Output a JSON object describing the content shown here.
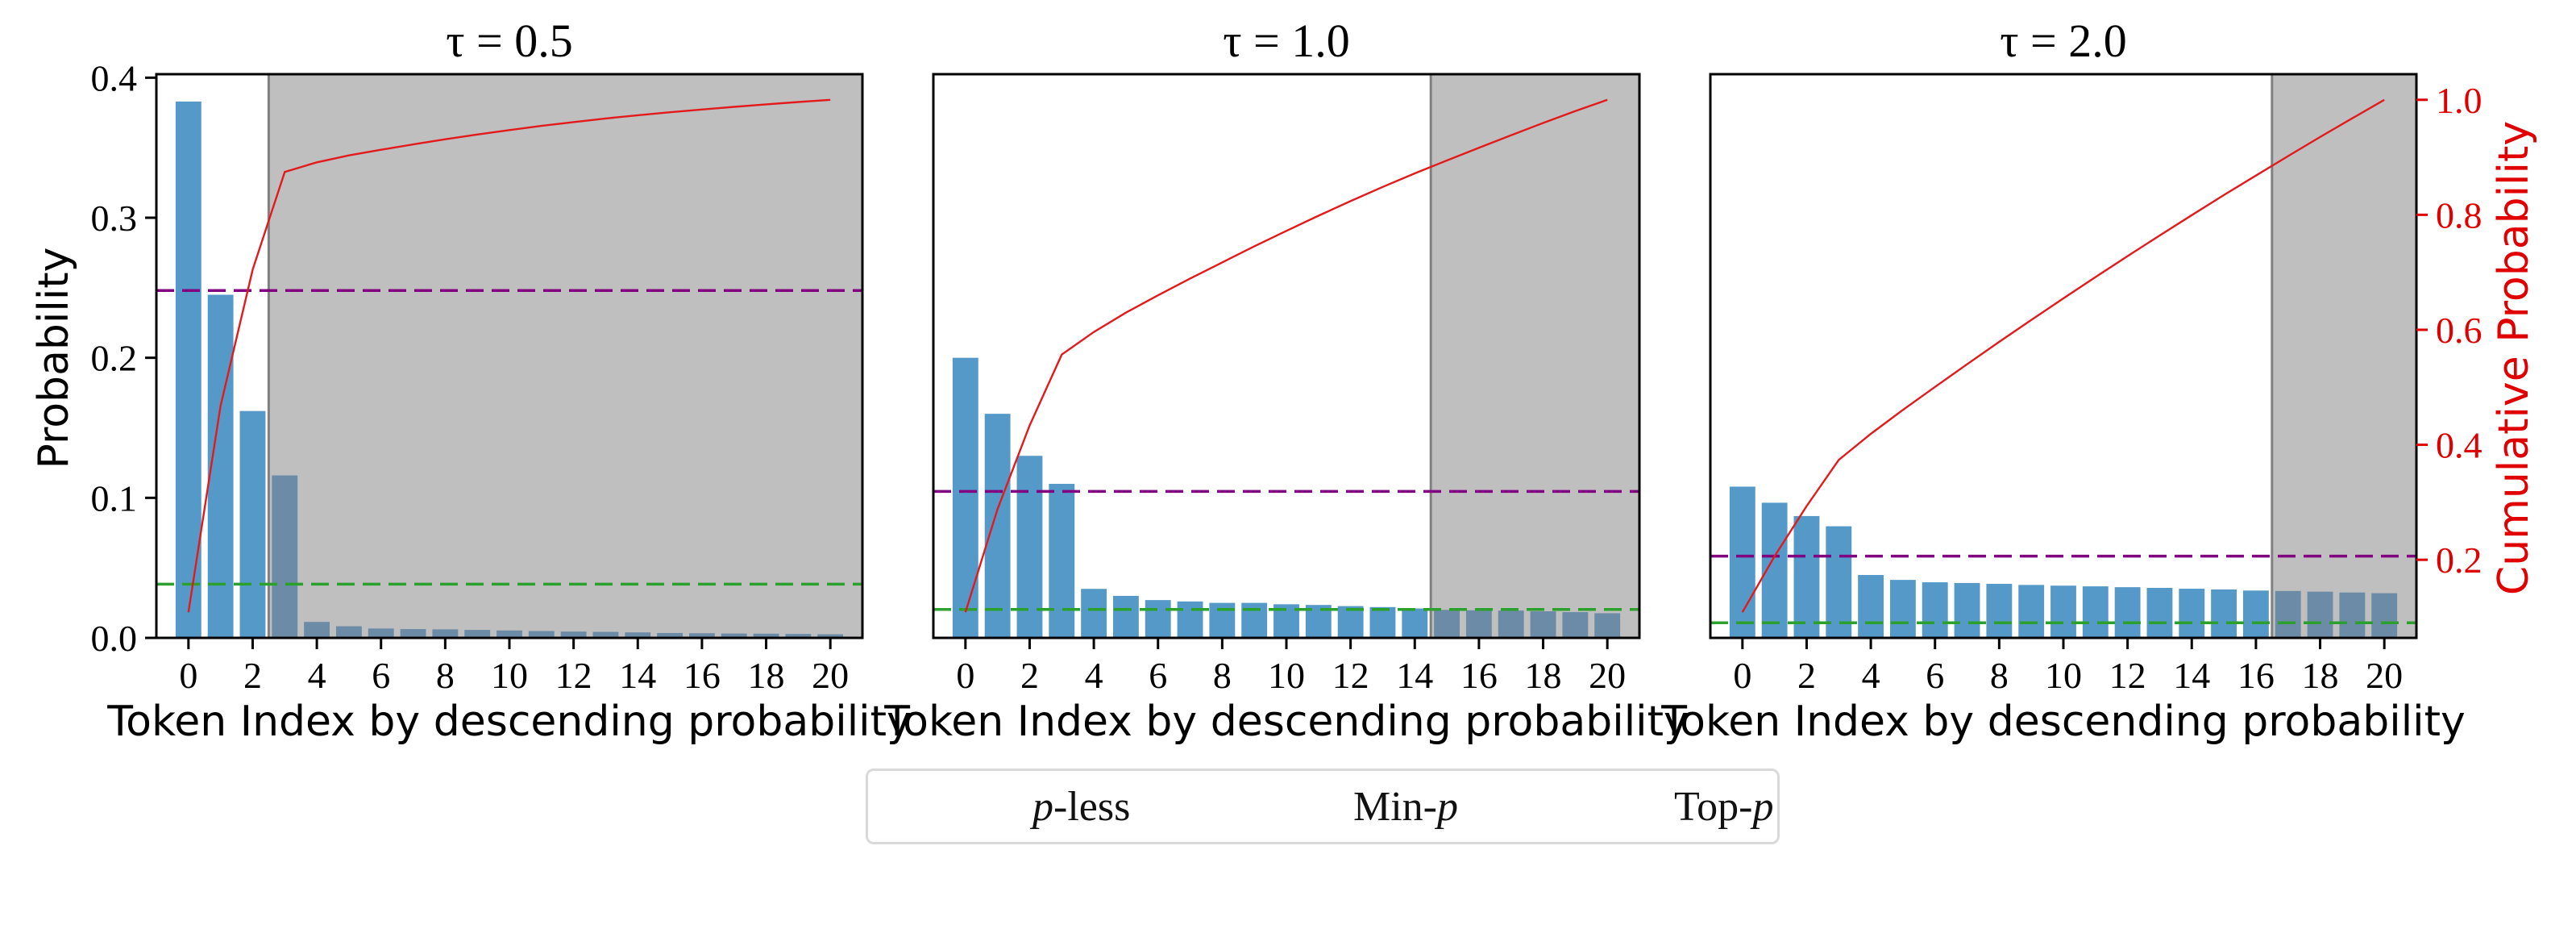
{
  "colors": {
    "bar": "#5599c8",
    "bar_shaded": "#6c8ba6",
    "shade": "#bfbfbf",
    "cumulative": "#e31a1c",
    "p_less": "#800080",
    "min_p": "#2ca02c",
    "top_p": "#808080",
    "right_axis": "#e00000"
  },
  "legend": {
    "items": [
      {
        "key": "p_less",
        "prefix_italic": "p",
        "suffix": "-less",
        "style": "dashed"
      },
      {
        "key": "min_p",
        "prefix": "Min-",
        "suffix_italic": "p",
        "style": "dashed"
      },
      {
        "key": "top_p",
        "prefix": "Top-",
        "suffix_italic": "p",
        "style": "solid"
      }
    ]
  },
  "chart_data": [
    {
      "type": "bar",
      "title": "τ = 0.5",
      "xlabel": "Token Index by descending probability",
      "ylabel": "Probability",
      "x": [
        0,
        1,
        2,
        3,
        4,
        5,
        6,
        7,
        8,
        9,
        10,
        11,
        12,
        13,
        14,
        15,
        16,
        17,
        18,
        19,
        20
      ],
      "xticks": [
        "0",
        "2",
        "4",
        "6",
        "8",
        "10",
        "12",
        "14",
        "16",
        "18",
        "20"
      ],
      "yticks": [
        "0.0",
        "0.1",
        "0.2",
        "0.3",
        "0.4"
      ],
      "ylim": [
        0,
        0.4025
      ],
      "xlim": [
        -1,
        21
      ],
      "values": [
        0.383,
        0.245,
        0.162,
        0.116,
        0.0114,
        0.0083,
        0.0067,
        0.0063,
        0.0061,
        0.0057,
        0.0053,
        0.0049,
        0.0045,
        0.0043,
        0.0039,
        0.0035,
        0.0033,
        0.0031,
        0.003,
        0.0028,
        0.0026
      ],
      "p_less_threshold": 0.248,
      "min_p_threshold": 0.0384,
      "top_p_cutoff_x": 2.5,
      "cumulative_label": "Cumulative Probability"
    },
    {
      "type": "bar",
      "title": "τ = 1.0",
      "xlabel": "Token Index by descending probability",
      "x": [
        0,
        1,
        2,
        3,
        4,
        5,
        6,
        7,
        8,
        9,
        10,
        11,
        12,
        13,
        14,
        15,
        16,
        17,
        18,
        19,
        20
      ],
      "xticks": [
        "0",
        "2",
        "4",
        "6",
        "8",
        "10",
        "12",
        "14",
        "16",
        "18",
        "20"
      ],
      "ylim": [
        0,
        0.4025
      ],
      "xlim": [
        -1,
        21
      ],
      "values": [
        0.2,
        0.16,
        0.13,
        0.11,
        0.035,
        0.03,
        0.027,
        0.026,
        0.025,
        0.025,
        0.024,
        0.0235,
        0.0227,
        0.022,
        0.021,
        0.02,
        0.0197,
        0.0195,
        0.019,
        0.0184,
        0.0176
      ],
      "p_less_threshold": 0.1046,
      "min_p_threshold": 0.0203,
      "top_p_cutoff_x": 14.5
    },
    {
      "type": "bar",
      "title": "τ = 2.0",
      "xlabel": "Token Index by descending probability",
      "x": [
        0,
        1,
        2,
        3,
        4,
        5,
        6,
        7,
        8,
        9,
        10,
        11,
        12,
        13,
        14,
        15,
        16,
        17,
        18,
        19,
        20
      ],
      "xticks": [
        "0",
        "2",
        "4",
        "6",
        "8",
        "10",
        "12",
        "14",
        "16",
        "18",
        "20"
      ],
      "ylim": [
        0,
        0.4025
      ],
      "xlim": [
        -1,
        21
      ],
      "values": [
        0.108,
        0.0965,
        0.087,
        0.0797,
        0.0449,
        0.0414,
        0.0397,
        0.0392,
        0.0386,
        0.0378,
        0.0373,
        0.0368,
        0.0362,
        0.0357,
        0.0351,
        0.0346,
        0.0338,
        0.0335,
        0.033,
        0.0324,
        0.0319
      ],
      "p_less_threshold": 0.0584,
      "min_p_threshold": 0.0108,
      "top_p_cutoff_x": 16.5,
      "right_yticks": [
        "0.2",
        "0.4",
        "0.6",
        "0.8",
        "1.0"
      ],
      "right_ylabel": "Cumulative Probability"
    }
  ]
}
